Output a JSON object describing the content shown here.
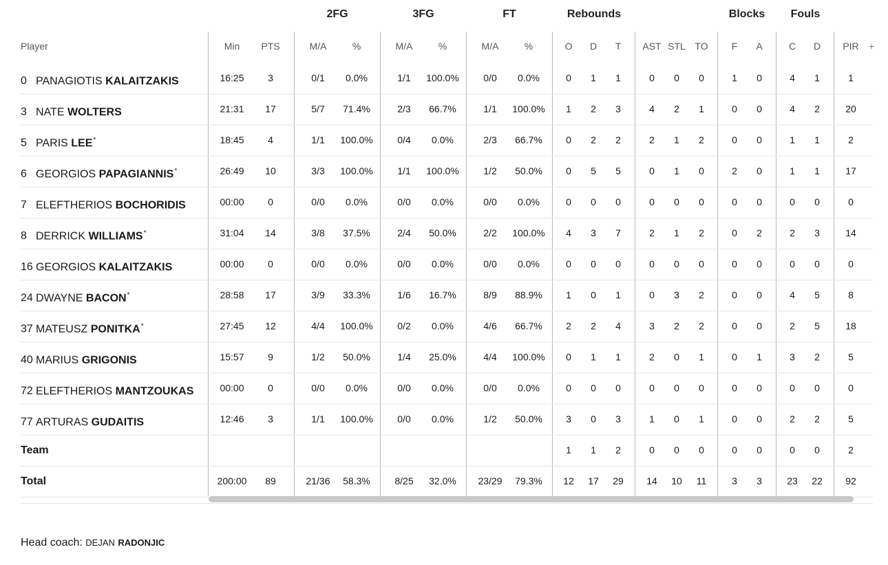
{
  "groups": {
    "fg2": "2FG",
    "fg3": "3FG",
    "ft": "FT",
    "reb": "Rebounds",
    "blk": "Blocks",
    "fouls": "Fouls"
  },
  "headers": {
    "player": "Player",
    "min": "Min",
    "pts": "PTS",
    "fg2_ma": "M/A",
    "fg2_pct": "%",
    "fg3_ma": "M/A",
    "fg3_pct": "%",
    "ft_ma": "M/A",
    "ft_pct": "%",
    "o": "O",
    "d": "D",
    "t": "T",
    "ast": "AST",
    "stl": "STL",
    "to": "TO",
    "f": "F",
    "a": "A",
    "c": "C",
    "fd": "D",
    "pir": "PIR",
    "more": "+"
  },
  "players": [
    {
      "num": "0",
      "first": "PANAGIOTIS",
      "last": "KALAITZAKIS",
      "star": "",
      "min": "16:25",
      "pts": "3",
      "fg2_ma": "0/1",
      "fg2_pct": "0.0%",
      "fg3_ma": "1/1",
      "fg3_pct": "100.0%",
      "ft_ma": "0/0",
      "ft_pct": "0.0%",
      "o": "0",
      "d": "1",
      "t": "1",
      "ast": "0",
      "stl": "0",
      "to": "0",
      "f": "1",
      "a": "0",
      "c": "4",
      "fd": "1",
      "pir": "1"
    },
    {
      "num": "3",
      "first": "NATE",
      "last": "WOLTERS",
      "star": "",
      "min": "21:31",
      "pts": "17",
      "fg2_ma": "5/7",
      "fg2_pct": "71.4%",
      "fg3_ma": "2/3",
      "fg3_pct": "66.7%",
      "ft_ma": "1/1",
      "ft_pct": "100.0%",
      "o": "1",
      "d": "2",
      "t": "3",
      "ast": "4",
      "stl": "2",
      "to": "1",
      "f": "0",
      "a": "0",
      "c": "4",
      "fd": "2",
      "pir": "20"
    },
    {
      "num": "5",
      "first": "PARIS",
      "last": "LEE",
      "star": "*",
      "min": "18:45",
      "pts": "4",
      "fg2_ma": "1/1",
      "fg2_pct": "100.0%",
      "fg3_ma": "0/4",
      "fg3_pct": "0.0%",
      "ft_ma": "2/3",
      "ft_pct": "66.7%",
      "o": "0",
      "d": "2",
      "t": "2",
      "ast": "2",
      "stl": "1",
      "to": "2",
      "f": "0",
      "a": "0",
      "c": "1",
      "fd": "1",
      "pir": "2"
    },
    {
      "num": "6",
      "first": "GEORGIOS",
      "last": "PAPAGIANNIS",
      "star": "*",
      "min": "26:49",
      "pts": "10",
      "fg2_ma": "3/3",
      "fg2_pct": "100.0%",
      "fg3_ma": "1/1",
      "fg3_pct": "100.0%",
      "ft_ma": "1/2",
      "ft_pct": "50.0%",
      "o": "0",
      "d": "5",
      "t": "5",
      "ast": "0",
      "stl": "1",
      "to": "0",
      "f": "2",
      "a": "0",
      "c": "1",
      "fd": "1",
      "pir": "17"
    },
    {
      "num": "7",
      "first": "ELEFTHERIOS",
      "last": "BOCHORIDIS",
      "star": "",
      "min": "00:00",
      "pts": "0",
      "fg2_ma": "0/0",
      "fg2_pct": "0.0%",
      "fg3_ma": "0/0",
      "fg3_pct": "0.0%",
      "ft_ma": "0/0",
      "ft_pct": "0.0%",
      "o": "0",
      "d": "0",
      "t": "0",
      "ast": "0",
      "stl": "0",
      "to": "0",
      "f": "0",
      "a": "0",
      "c": "0",
      "fd": "0",
      "pir": "0"
    },
    {
      "num": "8",
      "first": "DERRICK",
      "last": "WILLIAMS",
      "star": "*",
      "min": "31:04",
      "pts": "14",
      "fg2_ma": "3/8",
      "fg2_pct": "37.5%",
      "fg3_ma": "2/4",
      "fg3_pct": "50.0%",
      "ft_ma": "2/2",
      "ft_pct": "100.0%",
      "o": "4",
      "d": "3",
      "t": "7",
      "ast": "2",
      "stl": "1",
      "to": "2",
      "f": "0",
      "a": "2",
      "c": "2",
      "fd": "3",
      "pir": "14"
    },
    {
      "num": "16",
      "first": "GEORGIOS",
      "last": "KALAITZAKIS",
      "star": "",
      "min": "00:00",
      "pts": "0",
      "fg2_ma": "0/0",
      "fg2_pct": "0.0%",
      "fg3_ma": "0/0",
      "fg3_pct": "0.0%",
      "ft_ma": "0/0",
      "ft_pct": "0.0%",
      "o": "0",
      "d": "0",
      "t": "0",
      "ast": "0",
      "stl": "0",
      "to": "0",
      "f": "0",
      "a": "0",
      "c": "0",
      "fd": "0",
      "pir": "0"
    },
    {
      "num": "24",
      "first": "DWAYNE",
      "last": "BACON",
      "star": "*",
      "min": "28:58",
      "pts": "17",
      "fg2_ma": "3/9",
      "fg2_pct": "33.3%",
      "fg3_ma": "1/6",
      "fg3_pct": "16.7%",
      "ft_ma": "8/9",
      "ft_pct": "88.9%",
      "o": "1",
      "d": "0",
      "t": "1",
      "ast": "0",
      "stl": "3",
      "to": "2",
      "f": "0",
      "a": "0",
      "c": "4",
      "fd": "5",
      "pir": "8"
    },
    {
      "num": "37",
      "first": "MATEUSZ",
      "last": "PONITKA",
      "star": "*",
      "min": "27:45",
      "pts": "12",
      "fg2_ma": "4/4",
      "fg2_pct": "100.0%",
      "fg3_ma": "0/2",
      "fg3_pct": "0.0%",
      "ft_ma": "4/6",
      "ft_pct": "66.7%",
      "o": "2",
      "d": "2",
      "t": "4",
      "ast": "3",
      "stl": "2",
      "to": "2",
      "f": "0",
      "a": "0",
      "c": "2",
      "fd": "5",
      "pir": "18"
    },
    {
      "num": "40",
      "first": "MARIUS",
      "last": "GRIGONIS",
      "star": "",
      "min": "15:57",
      "pts": "9",
      "fg2_ma": "1/2",
      "fg2_pct": "50.0%",
      "fg3_ma": "1/4",
      "fg3_pct": "25.0%",
      "ft_ma": "4/4",
      "ft_pct": "100.0%",
      "o": "0",
      "d": "1",
      "t": "1",
      "ast": "2",
      "stl": "0",
      "to": "1",
      "f": "0",
      "a": "1",
      "c": "3",
      "fd": "2",
      "pir": "5"
    },
    {
      "num": "72",
      "first": "ELEFTHERIOS",
      "last": "MANTZOUKAS",
      "star": "",
      "min": "00:00",
      "pts": "0",
      "fg2_ma": "0/0",
      "fg2_pct": "0.0%",
      "fg3_ma": "0/0",
      "fg3_pct": "0.0%",
      "ft_ma": "0/0",
      "ft_pct": "0.0%",
      "o": "0",
      "d": "0",
      "t": "0",
      "ast": "0",
      "stl": "0",
      "to": "0",
      "f": "0",
      "a": "0",
      "c": "0",
      "fd": "0",
      "pir": "0"
    },
    {
      "num": "77",
      "first": "ARTURAS",
      "last": "GUDAITIS",
      "star": "",
      "min": "12:46",
      "pts": "3",
      "fg2_ma": "1/1",
      "fg2_pct": "100.0%",
      "fg3_ma": "0/0",
      "fg3_pct": "0.0%",
      "ft_ma": "1/2",
      "ft_pct": "50.0%",
      "o": "3",
      "d": "0",
      "t": "3",
      "ast": "1",
      "stl": "0",
      "to": "1",
      "f": "0",
      "a": "0",
      "c": "2",
      "fd": "2",
      "pir": "5"
    }
  ],
  "team": {
    "label": "Team",
    "min": "",
    "pts": "",
    "fg2_ma": "",
    "fg2_pct": "",
    "fg3_ma": "",
    "fg3_pct": "",
    "ft_ma": "",
    "ft_pct": "",
    "o": "1",
    "d": "1",
    "t": "2",
    "ast": "0",
    "stl": "0",
    "to": "0",
    "f": "0",
    "a": "0",
    "c": "0",
    "fd": "0",
    "pir": "2"
  },
  "total": {
    "label": "Total",
    "min": "200:00",
    "pts": "89",
    "fg2_ma": "21/36",
    "fg2_pct": "58.3%",
    "fg3_ma": "8/25",
    "fg3_pct": "32.0%",
    "ft_ma": "23/29",
    "ft_pct": "79.3%",
    "o": "12",
    "d": "17",
    "t": "29",
    "ast": "14",
    "stl": "10",
    "to": "11",
    "f": "3",
    "a": "3",
    "c": "23",
    "fd": "22",
    "pir": "92"
  },
  "coach": {
    "label": "Head coach:",
    "first": "DEJAN",
    "last": "RADONJIC"
  }
}
